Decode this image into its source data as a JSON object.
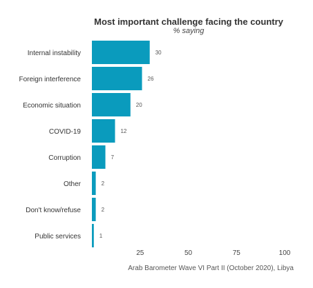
{
  "chart_data": {
    "type": "bar",
    "orientation": "horizontal",
    "title": "Most important challenge facing the country",
    "subtitle": "% saying",
    "caption": "Arab Barometer Wave VI Part II (October 2020), Libya",
    "categories": [
      "Internal instability",
      "Foreign interference",
      "Economic situation",
      "COVID-19",
      "Corruption",
      "Other",
      "Don't know/refuse",
      "Public services"
    ],
    "values": [
      30,
      26,
      20,
      12,
      7,
      2,
      2,
      1
    ],
    "xticks": [
      25,
      50,
      75,
      100
    ],
    "xlim": [
      0,
      100
    ],
    "grid": false,
    "legend": "none",
    "bar_color": "#0a9bbd"
  }
}
